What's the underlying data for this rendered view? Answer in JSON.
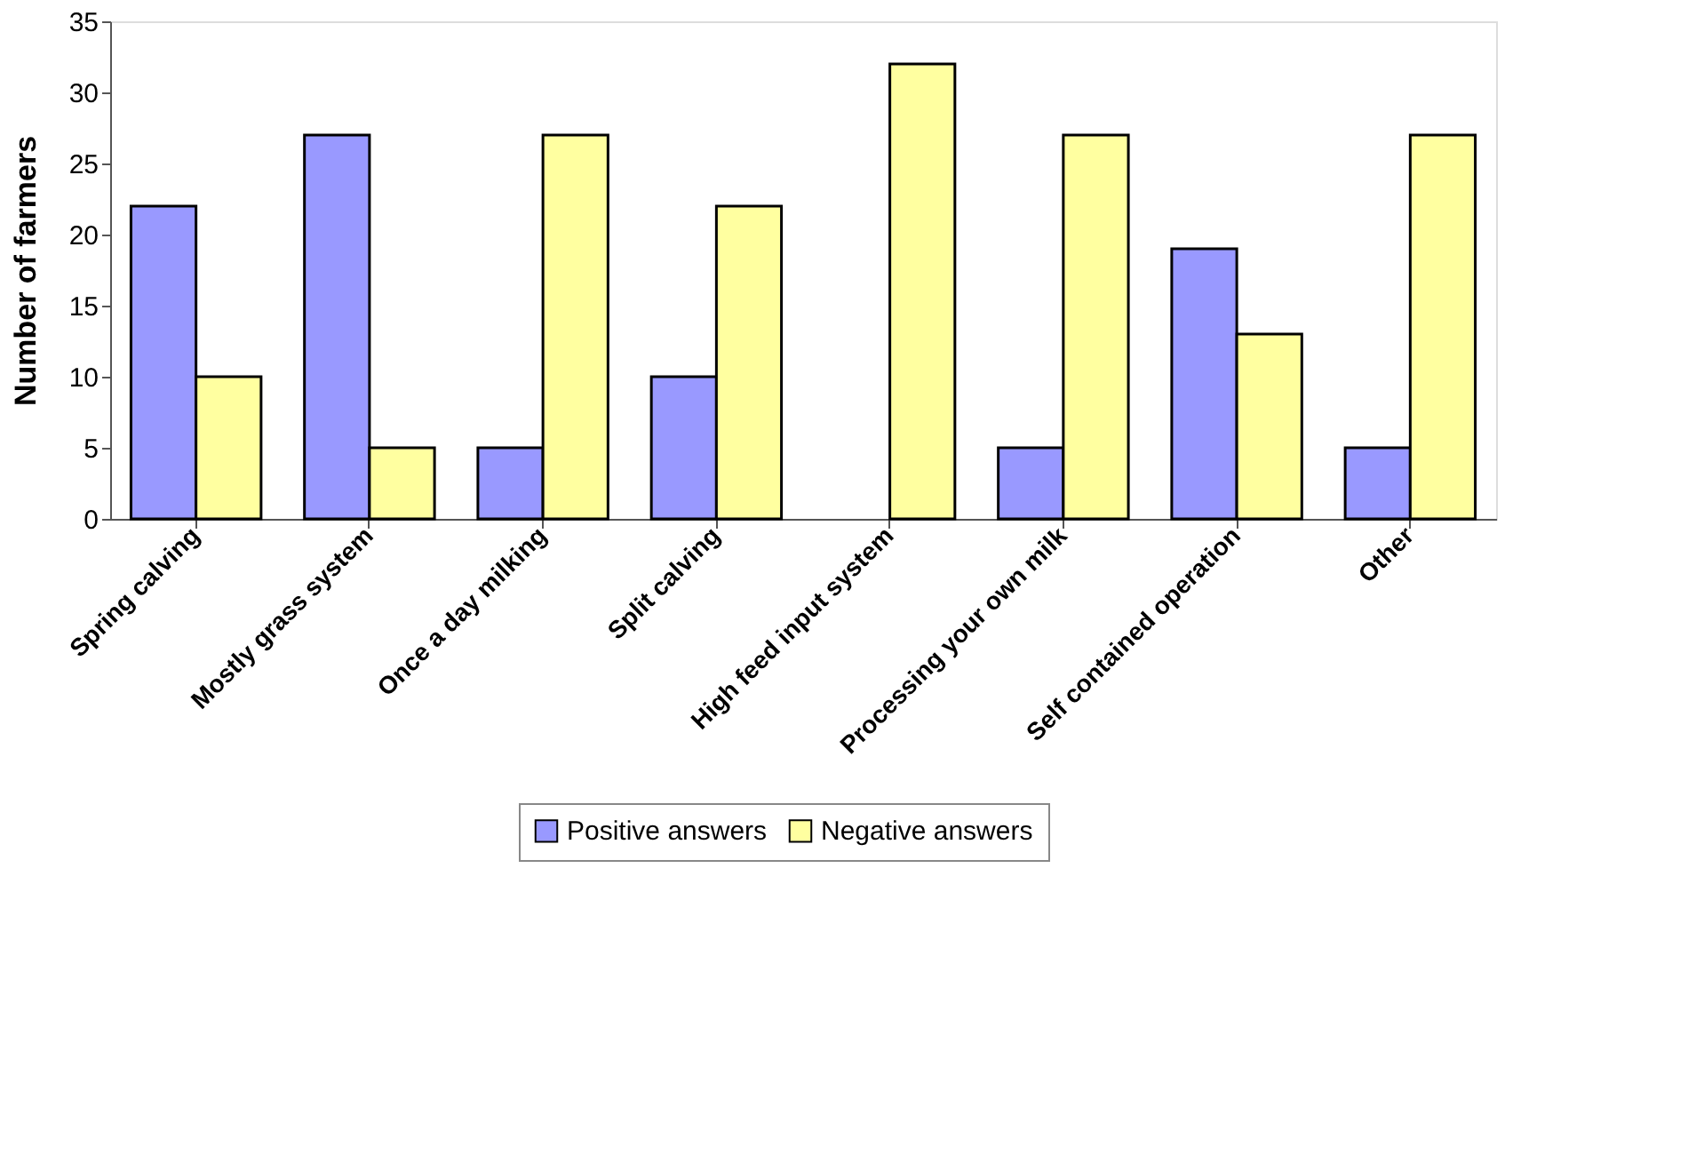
{
  "chart_data": {
    "type": "bar",
    "ylabel": "Number of farmers",
    "categories": [
      "Spring calving",
      "Mostly grass system",
      "Once a day milking",
      "Split calving",
      "High feed input system",
      "Processing your own milk",
      "Self contained operation",
      "Other"
    ],
    "series": [
      {
        "name": "Positive answers",
        "color": "#9999ff",
        "values": [
          22,
          27,
          5,
          10,
          null,
          5,
          19,
          5
        ]
      },
      {
        "name": "Negative answers",
        "color": "#ffffa0",
        "values": [
          10,
          5,
          27,
          22,
          32,
          27,
          13,
          27
        ]
      }
    ],
    "ylim": [
      0,
      35
    ],
    "yticks": [
      0,
      5,
      10,
      15,
      20,
      25,
      30,
      35
    ],
    "grid": false,
    "legend": "bottom"
  }
}
